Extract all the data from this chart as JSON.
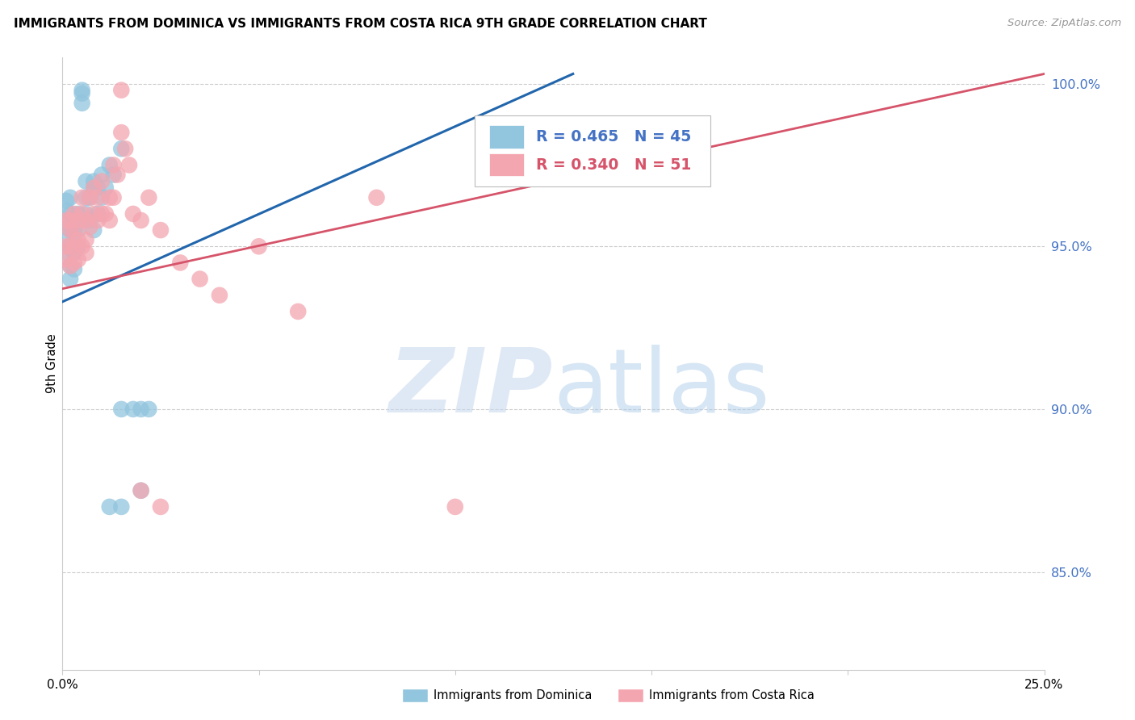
{
  "title": "IMMIGRANTS FROM DOMINICA VS IMMIGRANTS FROM COSTA RICA 9TH GRADE CORRELATION CHART",
  "source": "Source: ZipAtlas.com",
  "ylabel": "9th Grade",
  "y_ticks_right": [
    "100.0%",
    "95.0%",
    "90.0%",
    "85.0%"
  ],
  "y_tick_values": [
    1.0,
    0.95,
    0.9,
    0.85
  ],
  "xlim": [
    0.0,
    0.25
  ],
  "ylim": [
    0.82,
    1.008
  ],
  "blue_R": 0.465,
  "blue_N": 45,
  "pink_R": 0.34,
  "pink_N": 51,
  "blue_label": "Immigrants from Dominica",
  "pink_label": "Immigrants from Costa Rica",
  "blue_color": "#92c5de",
  "pink_color": "#f4a6b0",
  "blue_line_color": "#2166ac",
  "pink_line_color": "#d6546a",
  "background_color": "#ffffff",
  "grid_color": "#cccccc",
  "right_axis_color": "#4472c4",
  "legend_text_color": "#4472c4",
  "pink_text_color": "#d6546a",
  "blue_trend_x0": 0.0,
  "blue_trend_y0": 0.933,
  "blue_trend_x1": 0.13,
  "blue_trend_y1": 1.003,
  "pink_trend_x0": 0.0,
  "pink_trend_y0": 0.937,
  "pink_trend_x1": 0.25,
  "pink_trend_y1": 1.003,
  "blue_x": [
    0.001,
    0.001,
    0.001,
    0.001,
    0.001,
    0.002,
    0.002,
    0.002,
    0.002,
    0.002,
    0.002,
    0.003,
    0.003,
    0.003,
    0.003,
    0.003,
    0.004,
    0.004,
    0.004,
    0.005,
    0.005,
    0.005,
    0.006,
    0.006,
    0.006,
    0.007,
    0.007,
    0.008,
    0.008,
    0.008,
    0.009,
    0.009,
    0.01,
    0.01,
    0.011,
    0.012,
    0.013,
    0.015,
    0.015,
    0.018,
    0.02,
    0.022,
    0.012,
    0.015,
    0.02
  ],
  "blue_y": [
    0.952,
    0.957,
    0.961,
    0.964,
    0.948,
    0.955,
    0.96,
    0.965,
    0.95,
    0.944,
    0.94,
    0.958,
    0.955,
    0.95,
    0.948,
    0.943,
    0.96,
    0.955,
    0.95,
    0.998,
    0.997,
    0.994,
    0.97,
    0.965,
    0.96,
    0.965,
    0.958,
    0.97,
    0.968,
    0.955,
    0.968,
    0.96,
    0.972,
    0.965,
    0.968,
    0.975,
    0.972,
    0.98,
    0.9,
    0.9,
    0.9,
    0.9,
    0.87,
    0.87,
    0.875
  ],
  "pink_x": [
    0.001,
    0.001,
    0.001,
    0.002,
    0.002,
    0.002,
    0.002,
    0.003,
    0.003,
    0.003,
    0.003,
    0.004,
    0.004,
    0.004,
    0.005,
    0.005,
    0.005,
    0.006,
    0.006,
    0.006,
    0.007,
    0.007,
    0.008,
    0.008,
    0.009,
    0.009,
    0.01,
    0.01,
    0.011,
    0.012,
    0.012,
    0.013,
    0.013,
    0.014,
    0.015,
    0.015,
    0.016,
    0.017,
    0.018,
    0.02,
    0.022,
    0.025,
    0.03,
    0.035,
    0.04,
    0.05,
    0.06,
    0.08,
    0.1,
    0.02,
    0.025
  ],
  "pink_y": [
    0.958,
    0.95,
    0.946,
    0.958,
    0.955,
    0.95,
    0.944,
    0.96,
    0.955,
    0.95,
    0.945,
    0.958,
    0.952,
    0.946,
    0.965,
    0.96,
    0.95,
    0.958,
    0.952,
    0.948,
    0.965,
    0.956,
    0.968,
    0.96,
    0.965,
    0.958,
    0.97,
    0.96,
    0.96,
    0.965,
    0.958,
    0.975,
    0.965,
    0.972,
    0.998,
    0.985,
    0.98,
    0.975,
    0.96,
    0.958,
    0.965,
    0.955,
    0.945,
    0.94,
    0.935,
    0.95,
    0.93,
    0.965,
    0.87,
    0.875,
    0.87
  ]
}
